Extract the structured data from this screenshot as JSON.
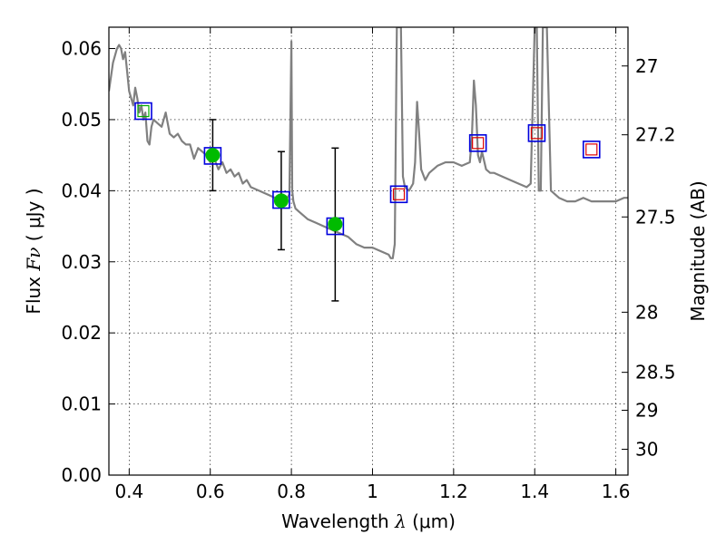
{
  "chart_data": {
    "type": "scatter",
    "xlabel": {
      "prefix": "Wavelength  ",
      "symbol": "λ",
      "unit": " (μm)"
    },
    "ylabel": {
      "prefix": "Flux  ",
      "symbol": "Fν",
      "unit": "  ( μJy )"
    },
    "y2label": "Magnitude (AB)",
    "xlim": [
      0.35,
      1.63
    ],
    "ylim": [
      0.0,
      0.063
    ],
    "grid": true,
    "x_ticks": [
      0.4,
      0.6,
      0.8,
      1.0,
      1.2,
      1.4,
      1.6
    ],
    "x_tick_labels": [
      "0.4",
      "0.6",
      "0.8",
      "1",
      "1.2",
      "1.4",
      "1.6"
    ],
    "y_ticks": [
      0.0,
      0.01,
      0.02,
      0.03,
      0.04,
      0.05,
      0.06
    ],
    "y_tick_labels": [
      "0.00",
      "0.01",
      "0.02",
      "0.03",
      "0.04",
      "0.05",
      "0.06"
    ],
    "mag_ticks": [
      27,
      27.2,
      27.5,
      28,
      28.5,
      29,
      30
    ],
    "mag_tick_labels": [
      "27",
      "27.2",
      "27.5",
      "28",
      "28.5",
      "29",
      "30"
    ],
    "series": [
      {
        "role": "model-spectrum",
        "style": "line",
        "color": "#808080",
        "x": [
          0.35,
          0.36,
          0.365,
          0.37,
          0.375,
          0.38,
          0.385,
          0.39,
          0.4,
          0.41,
          0.415,
          0.42,
          0.425,
          0.43,
          0.435,
          0.44,
          0.445,
          0.45,
          0.455,
          0.46,
          0.47,
          0.48,
          0.49,
          0.5,
          0.51,
          0.52,
          0.53,
          0.54,
          0.55,
          0.56,
          0.57,
          0.58,
          0.59,
          0.6,
          0.61,
          0.62,
          0.63,
          0.64,
          0.65,
          0.66,
          0.67,
          0.68,
          0.69,
          0.7,
          0.72,
          0.74,
          0.76,
          0.78,
          0.79,
          0.795,
          0.8,
          0.802,
          0.805,
          0.81,
          0.82,
          0.84,
          0.86,
          0.88,
          0.9,
          0.92,
          0.94,
          0.96,
          0.98,
          1.0,
          1.02,
          1.04,
          1.045,
          1.05,
          1.055,
          1.06,
          1.07,
          1.075,
          1.08,
          1.09,
          1.1,
          1.105,
          1.11,
          1.115,
          1.12,
          1.13,
          1.14,
          1.16,
          1.18,
          1.19,
          1.2,
          1.22,
          1.24,
          1.245,
          1.25,
          1.255,
          1.26,
          1.265,
          1.27,
          1.28,
          1.29,
          1.3,
          1.32,
          1.34,
          1.36,
          1.38,
          1.39,
          1.4,
          1.405,
          1.41,
          1.415,
          1.42,
          1.43,
          1.44,
          1.46,
          1.48,
          1.5,
          1.52,
          1.54,
          1.56,
          1.58,
          1.6,
          1.62,
          1.63
        ],
        "y": [
          0.054,
          0.058,
          0.059,
          0.06,
          0.0605,
          0.06,
          0.0585,
          0.0595,
          0.054,
          0.052,
          0.0545,
          0.053,
          0.051,
          0.052,
          0.05,
          0.051,
          0.047,
          0.0465,
          0.049,
          0.05,
          0.0495,
          0.049,
          0.051,
          0.048,
          0.0475,
          0.048,
          0.047,
          0.0465,
          0.0465,
          0.0445,
          0.046,
          0.0455,
          0.045,
          0.044,
          0.0445,
          0.043,
          0.044,
          0.0425,
          0.043,
          0.042,
          0.0425,
          0.041,
          0.0415,
          0.0405,
          0.04,
          0.0395,
          0.039,
          0.039,
          0.039,
          0.0395,
          0.061,
          0.04,
          0.0385,
          0.0375,
          0.037,
          0.036,
          0.0355,
          0.035,
          0.0345,
          0.034,
          0.0335,
          0.0325,
          0.032,
          0.032,
          0.0315,
          0.031,
          0.0305,
          0.0305,
          0.0325,
          0.063,
          0.063,
          0.042,
          0.0405,
          0.04,
          0.041,
          0.044,
          0.0525,
          0.048,
          0.043,
          0.0415,
          0.0425,
          0.0435,
          0.044,
          0.044,
          0.044,
          0.0435,
          0.044,
          0.0475,
          0.0555,
          0.052,
          0.045,
          0.044,
          0.0455,
          0.043,
          0.0425,
          0.0425,
          0.042,
          0.0415,
          0.041,
          0.0405,
          0.041,
          0.063,
          0.063,
          0.04,
          0.04,
          0.063,
          0.063,
          0.04,
          0.039,
          0.0385,
          0.0385,
          0.039,
          0.0385,
          0.0385,
          0.0385,
          0.0385,
          0.039,
          0.039
        ]
      },
      {
        "role": "observed-photometry",
        "style": "marker",
        "marker": "circle",
        "color": "#00bb00",
        "x": [
          0.606,
          0.775,
          0.908
        ],
        "y": [
          0.045,
          0.0386,
          0.0353
        ],
        "yerr_low": [
          0.04,
          0.0317,
          0.0245
        ],
        "yerr_high": [
          0.05,
          0.0455,
          0.046
        ]
      },
      {
        "role": "model-photometry",
        "style": "marker",
        "marker": "square",
        "color": "#0000dd",
        "x": [
          0.435,
          0.606,
          0.775,
          0.908,
          1.065,
          1.26,
          1.405,
          1.54
        ],
        "y": [
          0.0512,
          0.0449,
          0.0387,
          0.035,
          0.0395,
          0.0467,
          0.0481,
          0.0458
        ]
      },
      {
        "role": "inner-square-green",
        "style": "marker",
        "marker": "square",
        "color": "#00aa00",
        "x": [
          0.435
        ],
        "y": [
          0.0512
        ]
      },
      {
        "role": "inner-square-red",
        "style": "marker",
        "marker": "square",
        "color": "#dd0000",
        "x": [
          1.065,
          1.26,
          1.405,
          1.54
        ],
        "y": [
          0.0395,
          0.0467,
          0.0481,
          0.0458
        ]
      }
    ]
  }
}
